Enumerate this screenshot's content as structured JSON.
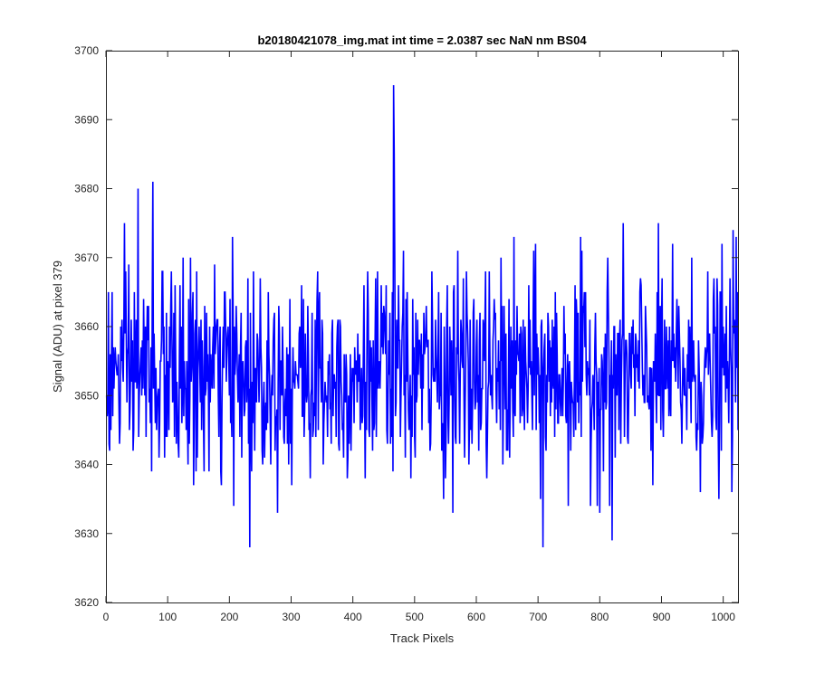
{
  "chart_data": {
    "type": "line",
    "title": "b20180421078_img.mat int time = 2.0387 sec  NaN nm BS04",
    "xlabel": "Track Pixels",
    "ylabel": "Signal (ADU) at pixel 379",
    "xlim": [
      0,
      1024
    ],
    "ylim": [
      3620,
      3700
    ],
    "xticks": [
      0,
      100,
      200,
      300,
      400,
      500,
      600,
      700,
      800,
      900,
      1000
    ],
    "yticks": [
      3620,
      3630,
      3640,
      3650,
      3660,
      3670,
      3680,
      3690,
      3700
    ],
    "grid": false,
    "line_color": "#0000ff",
    "series": [
      {
        "num_points": 1024,
        "x_start": 1,
        "x_step": 1,
        "mean": 3653,
        "min": 3628,
        "max": 3695,
        "features": [
          {
            "x": 76,
            "y": 3681
          },
          {
            "x": 52,
            "y": 3680
          },
          {
            "x": 233,
            "y": 3628
          },
          {
            "x": 466,
            "y": 3695
          },
          {
            "x": 467,
            "y": 3685
          },
          {
            "x": 708,
            "y": 3628
          },
          {
            "x": 820,
            "y": 3629
          },
          {
            "x": 1016,
            "y": 3674
          }
        ]
      }
    ]
  }
}
